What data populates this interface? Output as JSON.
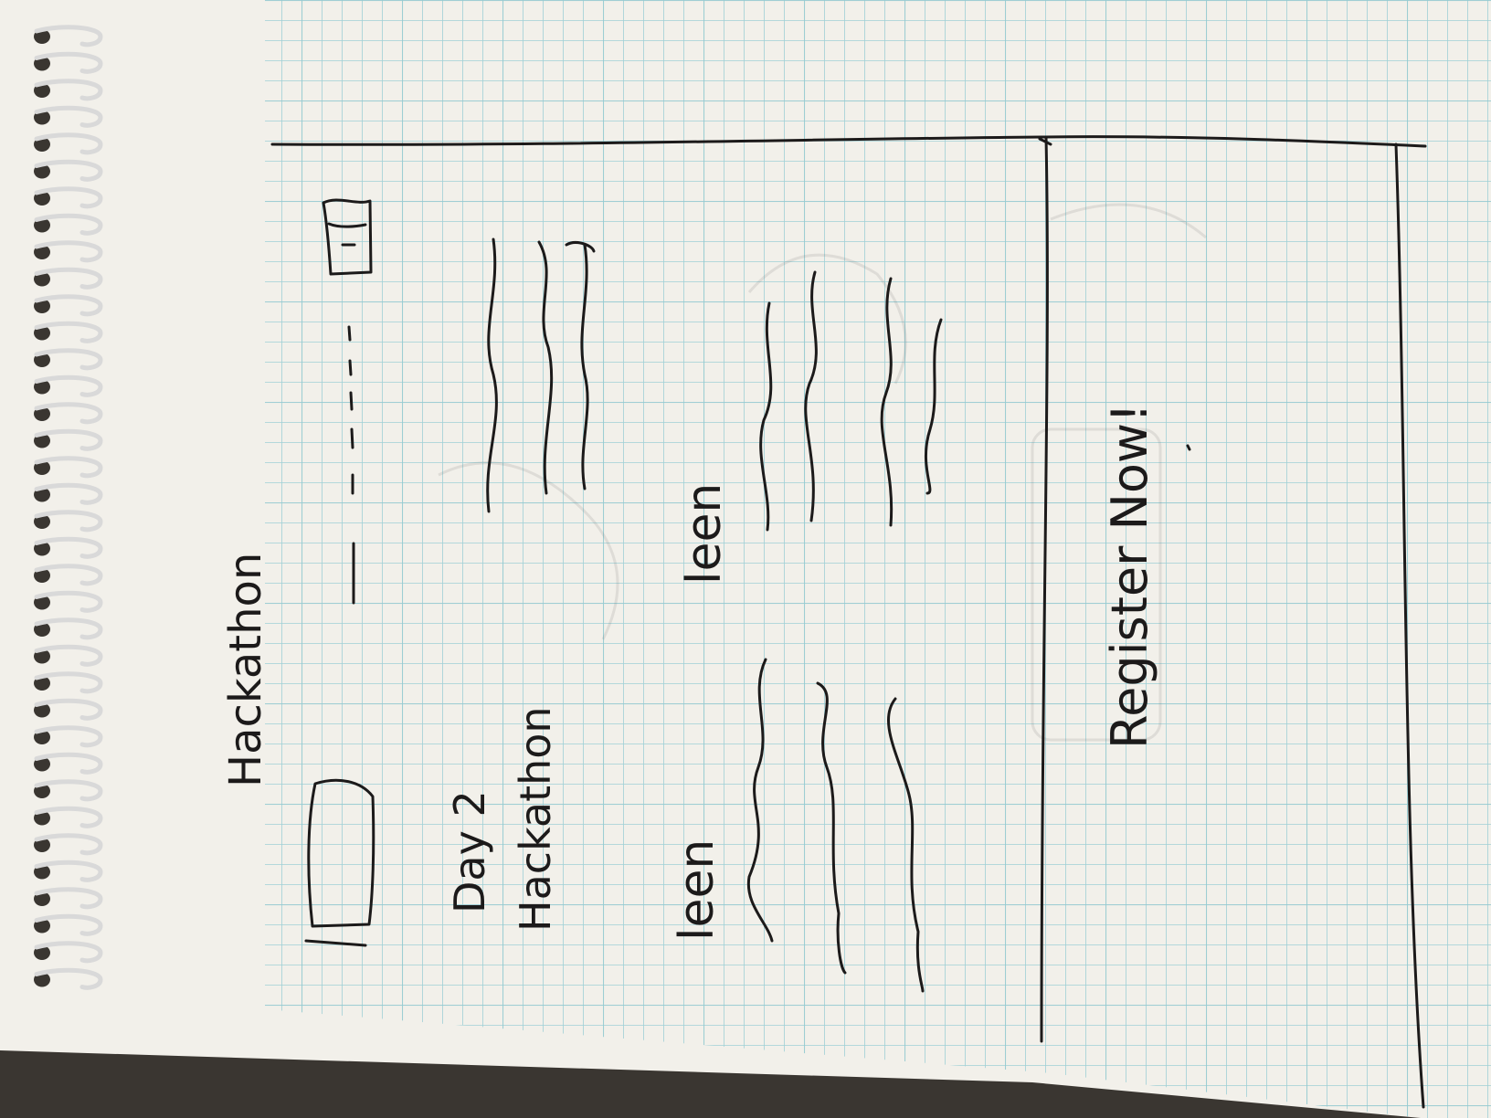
{
  "notebook": {
    "paper_color": "#f2f0ea",
    "grid_color": "#9fd0d6",
    "ink_color": "#1c1a1a"
  },
  "sketch": {
    "header_title": "Hackathon",
    "event_title_line1": "Day 2",
    "event_title_line2": "Hackathon",
    "card_left_word": "leen",
    "card_right_word": "leen",
    "cta_label": "Register Now!"
  },
  "icons": [
    "hamburger-menu-icon",
    "image-placeholder-icon",
    "small-image-icon"
  ]
}
